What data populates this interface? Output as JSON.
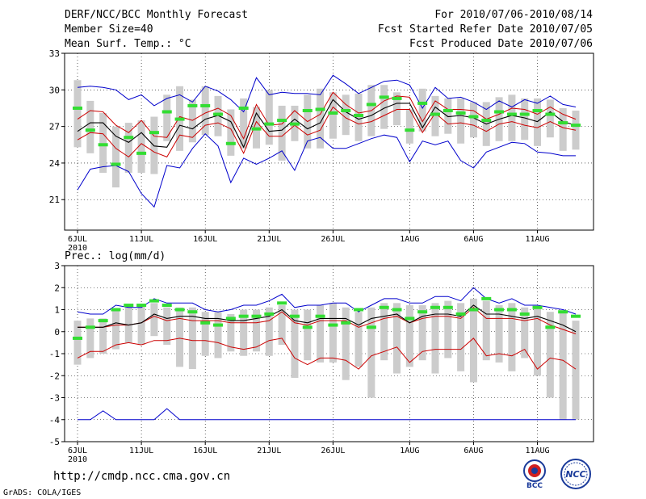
{
  "header": {
    "title": "DERF/NCC/BCC Monthly Forecast",
    "member_size": "Member Size=40",
    "variable_label": "Mean Surf. Temp.: °C",
    "period": "For 2010/07/06-2010/08/14",
    "start_date": "Fcst Started Refer Date 2010/07/05",
    "produced_date": "Fcst Produced Date 2010/07/06"
  },
  "footer": {
    "url": "http://cmdp.ncc.cma.gov.cn",
    "grads_credit": "GrADS: COLA/IGES",
    "logo_left_text": "BCC",
    "logo_right_text": "NCC"
  },
  "colors": {
    "max_min_line": "#0000cc",
    "spread_line": "#cc0000",
    "mean_line": "#000000",
    "median_bar": "#33dd33",
    "box": "#cccccc",
    "grid": "#000000"
  },
  "chart_data": [
    {
      "type": "line",
      "title": "Mean Surf. Temp.: °C",
      "x_start_day": 6,
      "days": 40,
      "ylim": [
        18.5,
        33
      ],
      "y_ticks": [
        "21",
        "24",
        "27",
        "30",
        "33"
      ],
      "y_tick_values": [
        21,
        24,
        27,
        30,
        33
      ],
      "x_tick_labels": [
        "6JUL",
        "11JUL",
        "16JUL",
        "21JUL",
        "26JUL",
        "1AUG",
        "6AUG",
        "11AUG"
      ],
      "x_tick_days": [
        0,
        5,
        10,
        15,
        20,
        26,
        31,
        36
      ],
      "year_label": "2010",
      "series": [
        {
          "name": "max",
          "values": [
            30.2,
            30.3,
            30.2,
            30.0,
            29.2,
            29.6,
            28.7,
            29.3,
            29.6,
            29.0,
            30.3,
            29.9,
            29.2,
            28.2,
            31.0,
            29.6,
            29.8,
            29.7,
            29.7,
            29.6,
            31.2,
            30.5,
            29.7,
            30.2,
            30.7,
            30.8,
            30.4,
            28.5,
            30.2,
            29.3,
            29.4,
            29.0,
            28.4,
            29.1,
            28.6,
            29.2,
            28.9,
            29.5,
            28.8,
            28.6
          ]
        },
        {
          "name": "upper",
          "values": [
            27.6,
            28.3,
            28.2,
            27.1,
            26.5,
            27.5,
            26.2,
            26.1,
            27.8,
            27.5,
            28.1,
            28.5,
            27.9,
            26.0,
            28.8,
            27.1,
            27.2,
            28.3,
            27.4,
            28.0,
            29.8,
            28.8,
            28.1,
            28.3,
            29.1,
            29.5,
            29.4,
            27.4,
            29.1,
            28.4,
            28.4,
            28.3,
            27.6,
            28.0,
            28.5,
            28.4,
            28.0,
            28.6,
            28.0,
            27.6
          ]
        },
        {
          "name": "mean",
          "values": [
            26.6,
            27.3,
            27.3,
            26.2,
            25.7,
            26.5,
            25.4,
            25.3,
            27.1,
            26.8,
            27.6,
            27.9,
            27.4,
            25.3,
            28.1,
            26.6,
            26.7,
            27.6,
            26.8,
            27.3,
            29.2,
            28.2,
            27.6,
            27.9,
            28.5,
            28.9,
            28.9,
            26.9,
            28.6,
            27.8,
            27.9,
            27.7,
            27.2,
            27.6,
            27.9,
            27.7,
            27.4,
            28.2,
            27.4,
            27.1
          ]
        },
        {
          "name": "lower",
          "values": [
            25.9,
            26.5,
            26.4,
            25.2,
            24.5,
            25.6,
            24.9,
            24.5,
            26.3,
            26.1,
            27.1,
            27.3,
            26.8,
            24.8,
            27.4,
            26.2,
            26.2,
            27.1,
            26.3,
            26.7,
            28.6,
            27.7,
            27.2,
            27.4,
            27.9,
            28.4,
            28.4,
            26.5,
            28.1,
            27.2,
            27.3,
            27.1,
            26.6,
            27.2,
            27.4,
            27.1,
            26.9,
            27.4,
            26.9,
            26.7
          ]
        },
        {
          "name": "min",
          "values": [
            21.8,
            23.5,
            23.7,
            23.8,
            23.3,
            21.5,
            20.4,
            23.8,
            23.6,
            25.2,
            26.4,
            25.4,
            22.4,
            24.4,
            23.9,
            24.4,
            25.0,
            23.4,
            25.8,
            26.1,
            25.2,
            25.2,
            25.6,
            26.0,
            26.3,
            26.1,
            24.1,
            25.8,
            25.5,
            25.8,
            24.2,
            23.6,
            24.9,
            25.3,
            25.7,
            25.6,
            24.9,
            24.8,
            24.6,
            24.6
          ]
        },
        {
          "name": "median",
          "values": [
            28.5,
            26.7,
            25.5,
            23.9,
            26.1,
            24.8,
            26.5,
            28.2,
            27.6,
            28.7,
            28.7,
            28.0,
            25.6,
            28.5,
            26.8,
            27.2,
            27.5,
            27.2,
            28.3,
            28.4,
            28.1,
            28.3,
            27.9,
            28.8,
            29.4,
            29.3,
            26.7,
            28.9,
            28.0,
            28.3,
            28.1,
            27.8,
            27.5,
            28.2,
            28.0,
            28.0,
            28.3,
            28.0,
            27.3,
            27.1
          ]
        },
        {
          "name": "box_high",
          "values": [
            30.8,
            29.1,
            28.1,
            27.0,
            27.3,
            27.5,
            27.8,
            29.6,
            30.3,
            29.2,
            30.3,
            29.5,
            28.4,
            29.3,
            28.6,
            30.0,
            28.7,
            28.7,
            29.6,
            30.1,
            29.8,
            29.6,
            29.7,
            30.4,
            30.4,
            29.8,
            28.4,
            30.1,
            29.5,
            29.3,
            29.3,
            29.0,
            29.0,
            29.4,
            29.6,
            29.3,
            29.3,
            29.2,
            28.5,
            28.3
          ]
        },
        {
          "name": "box_low",
          "values": [
            25.3,
            24.8,
            23.2,
            22.0,
            23.2,
            23.2,
            23.1,
            25.8,
            25.0,
            25.7,
            26.3,
            26.2,
            24.6,
            25.2,
            25.2,
            25.5,
            24.2,
            25.8,
            25.2,
            25.2,
            26.0,
            26.3,
            25.8,
            26.2,
            26.8,
            27.1,
            25.6,
            26.6,
            26.2,
            26.4,
            25.6,
            26.1,
            25.4,
            25.8,
            25.8,
            25.9,
            25.4,
            26.1,
            25.0,
            25.1
          ]
        }
      ]
    },
    {
      "type": "line",
      "title": "Prec.: log(mm/d)",
      "x_start_day": 6,
      "days": 40,
      "ylim": [
        -5,
        3
      ],
      "y_ticks": [
        "-5",
        "-4",
        "-3",
        "-2",
        "-1",
        "0",
        "1",
        "2",
        "3"
      ],
      "y_tick_values": [
        -5,
        -4,
        -3,
        -2,
        -1,
        0,
        1,
        2,
        3
      ],
      "x_tick_labels": [
        "6JUL",
        "11JUL",
        "16JUL",
        "21JUL",
        "26JUL",
        "1AUG",
        "6AUG",
        "11AUG"
      ],
      "x_tick_days": [
        0,
        5,
        10,
        15,
        20,
        26,
        31,
        36
      ],
      "year_label": "2010",
      "series": [
        {
          "name": "max",
          "values": [
            0.9,
            0.8,
            0.8,
            1.2,
            1.1,
            1.1,
            1.5,
            1.3,
            1.3,
            1.3,
            1.0,
            0.9,
            1.0,
            1.2,
            1.2,
            1.4,
            1.7,
            1.1,
            1.2,
            1.2,
            1.3,
            1.3,
            0.9,
            1.2,
            1.5,
            1.5,
            1.3,
            1.3,
            1.6,
            1.6,
            1.4,
            2.0,
            1.5,
            1.3,
            1.5,
            1.2,
            1.2,
            1.1,
            1.0,
            0.8
          ]
        },
        {
          "name": "mean",
          "values": [
            0.2,
            0.2,
            0.2,
            0.4,
            0.3,
            0.4,
            0.8,
            0.6,
            0.7,
            0.7,
            0.6,
            0.6,
            0.5,
            0.5,
            0.6,
            0.7,
            1.0,
            0.5,
            0.4,
            0.6,
            0.6,
            0.6,
            0.3,
            0.6,
            0.7,
            0.8,
            0.4,
            0.7,
            0.8,
            0.8,
            0.7,
            1.2,
            0.8,
            0.8,
            0.7,
            0.6,
            0.7,
            0.5,
            0.3,
            0.0
          ]
        },
        {
          "name": "upper",
          "values": [
            0.2,
            0.2,
            0.2,
            0.3,
            0.3,
            0.4,
            0.7,
            0.5,
            0.6,
            0.5,
            0.5,
            0.5,
            0.4,
            0.4,
            0.4,
            0.5,
            0.9,
            0.4,
            0.3,
            0.5,
            0.5,
            0.5,
            0.2,
            0.4,
            0.6,
            0.7,
            0.4,
            0.6,
            0.7,
            0.7,
            0.6,
            1.1,
            0.6,
            0.6,
            0.6,
            0.5,
            0.6,
            0.3,
            0.1,
            -0.1
          ]
        },
        {
          "name": "lower",
          "values": [
            -1.2,
            -0.9,
            -0.9,
            -0.6,
            -0.5,
            -0.6,
            -0.4,
            -0.4,
            -0.3,
            -0.4,
            -0.4,
            -0.5,
            -0.7,
            -0.8,
            -0.7,
            -0.4,
            -0.3,
            -1.2,
            -1.5,
            -1.2,
            -1.2,
            -1.3,
            -1.7,
            -1.1,
            -0.9,
            -0.7,
            -1.4,
            -0.9,
            -0.8,
            -0.8,
            -0.8,
            -0.3,
            -1.1,
            -1.0,
            -1.1,
            -0.8,
            -1.7,
            -1.2,
            -1.3,
            -1.7
          ]
        },
        {
          "name": "min",
          "values": [
            -4.0,
            -4.0,
            -3.6,
            -4.0,
            -4.0,
            -4.0,
            -4.0,
            -3.5,
            -4.0,
            -4.0,
            -4.0,
            -4.0,
            -4.0,
            -4.0,
            -4.0,
            -4.0,
            -4.0,
            -4.0,
            -4.0,
            -4.0,
            -4.0,
            -4.0,
            -4.0,
            -4.0,
            -4.0,
            -4.0,
            -4.0,
            -4.0,
            -4.0,
            -4.0,
            -4.0,
            -4.0,
            -4.0,
            -4.0,
            -4.0,
            -4.0,
            -4.0,
            -4.0,
            -4.0,
            -4.0
          ]
        },
        {
          "name": "median",
          "values": [
            -0.3,
            0.2,
            0.5,
            1.0,
            1.2,
            1.2,
            1.4,
            1.2,
            1.0,
            0.9,
            0.4,
            0.3,
            0.6,
            0.7,
            0.7,
            0.8,
            1.3,
            0.7,
            0.2,
            0.7,
            0.3,
            0.4,
            1.0,
            0.2,
            1.1,
            1.0,
            0.6,
            0.9,
            1.1,
            1.1,
            0.8,
            1.0,
            1.5,
            1.0,
            1.0,
            0.8,
            1.1,
            0.2,
            0.9,
            0.7
          ]
        },
        {
          "name": "box_high",
          "values": [
            0.5,
            0.6,
            0.6,
            1.0,
            1.2,
            1.2,
            1.3,
            1.1,
            1.1,
            1.1,
            0.9,
            0.9,
            0.8,
            1.0,
            1.0,
            1.1,
            1.2,
            1.0,
            1.0,
            1.2,
            1.3,
            1.1,
            0.9,
            1.1,
            1.3,
            1.3,
            1.2,
            1.2,
            1.3,
            1.4,
            1.3,
            1.5,
            1.4,
            1.2,
            1.3,
            1.1,
            1.1,
            0.9,
            0.9,
            0.5
          ]
        },
        {
          "name": "box_low",
          "values": [
            -1.5,
            -1.2,
            -1.0,
            -0.8,
            -0.5,
            -0.6,
            -0.2,
            -0.6,
            -1.6,
            -1.7,
            -1.1,
            -1.2,
            -0.9,
            -1.1,
            -0.9,
            -1.1,
            -0.6,
            -2.1,
            -1.3,
            -1.4,
            -1.4,
            -2.2,
            -1.6,
            -3.0,
            -1.3,
            -1.9,
            -1.6,
            -1.3,
            -1.9,
            -1.2,
            -1.8,
            -2.3,
            -1.3,
            -1.4,
            -1.8,
            -1.2,
            -2.0,
            -3.0,
            -4.0,
            -4.0
          ]
        }
      ]
    }
  ]
}
